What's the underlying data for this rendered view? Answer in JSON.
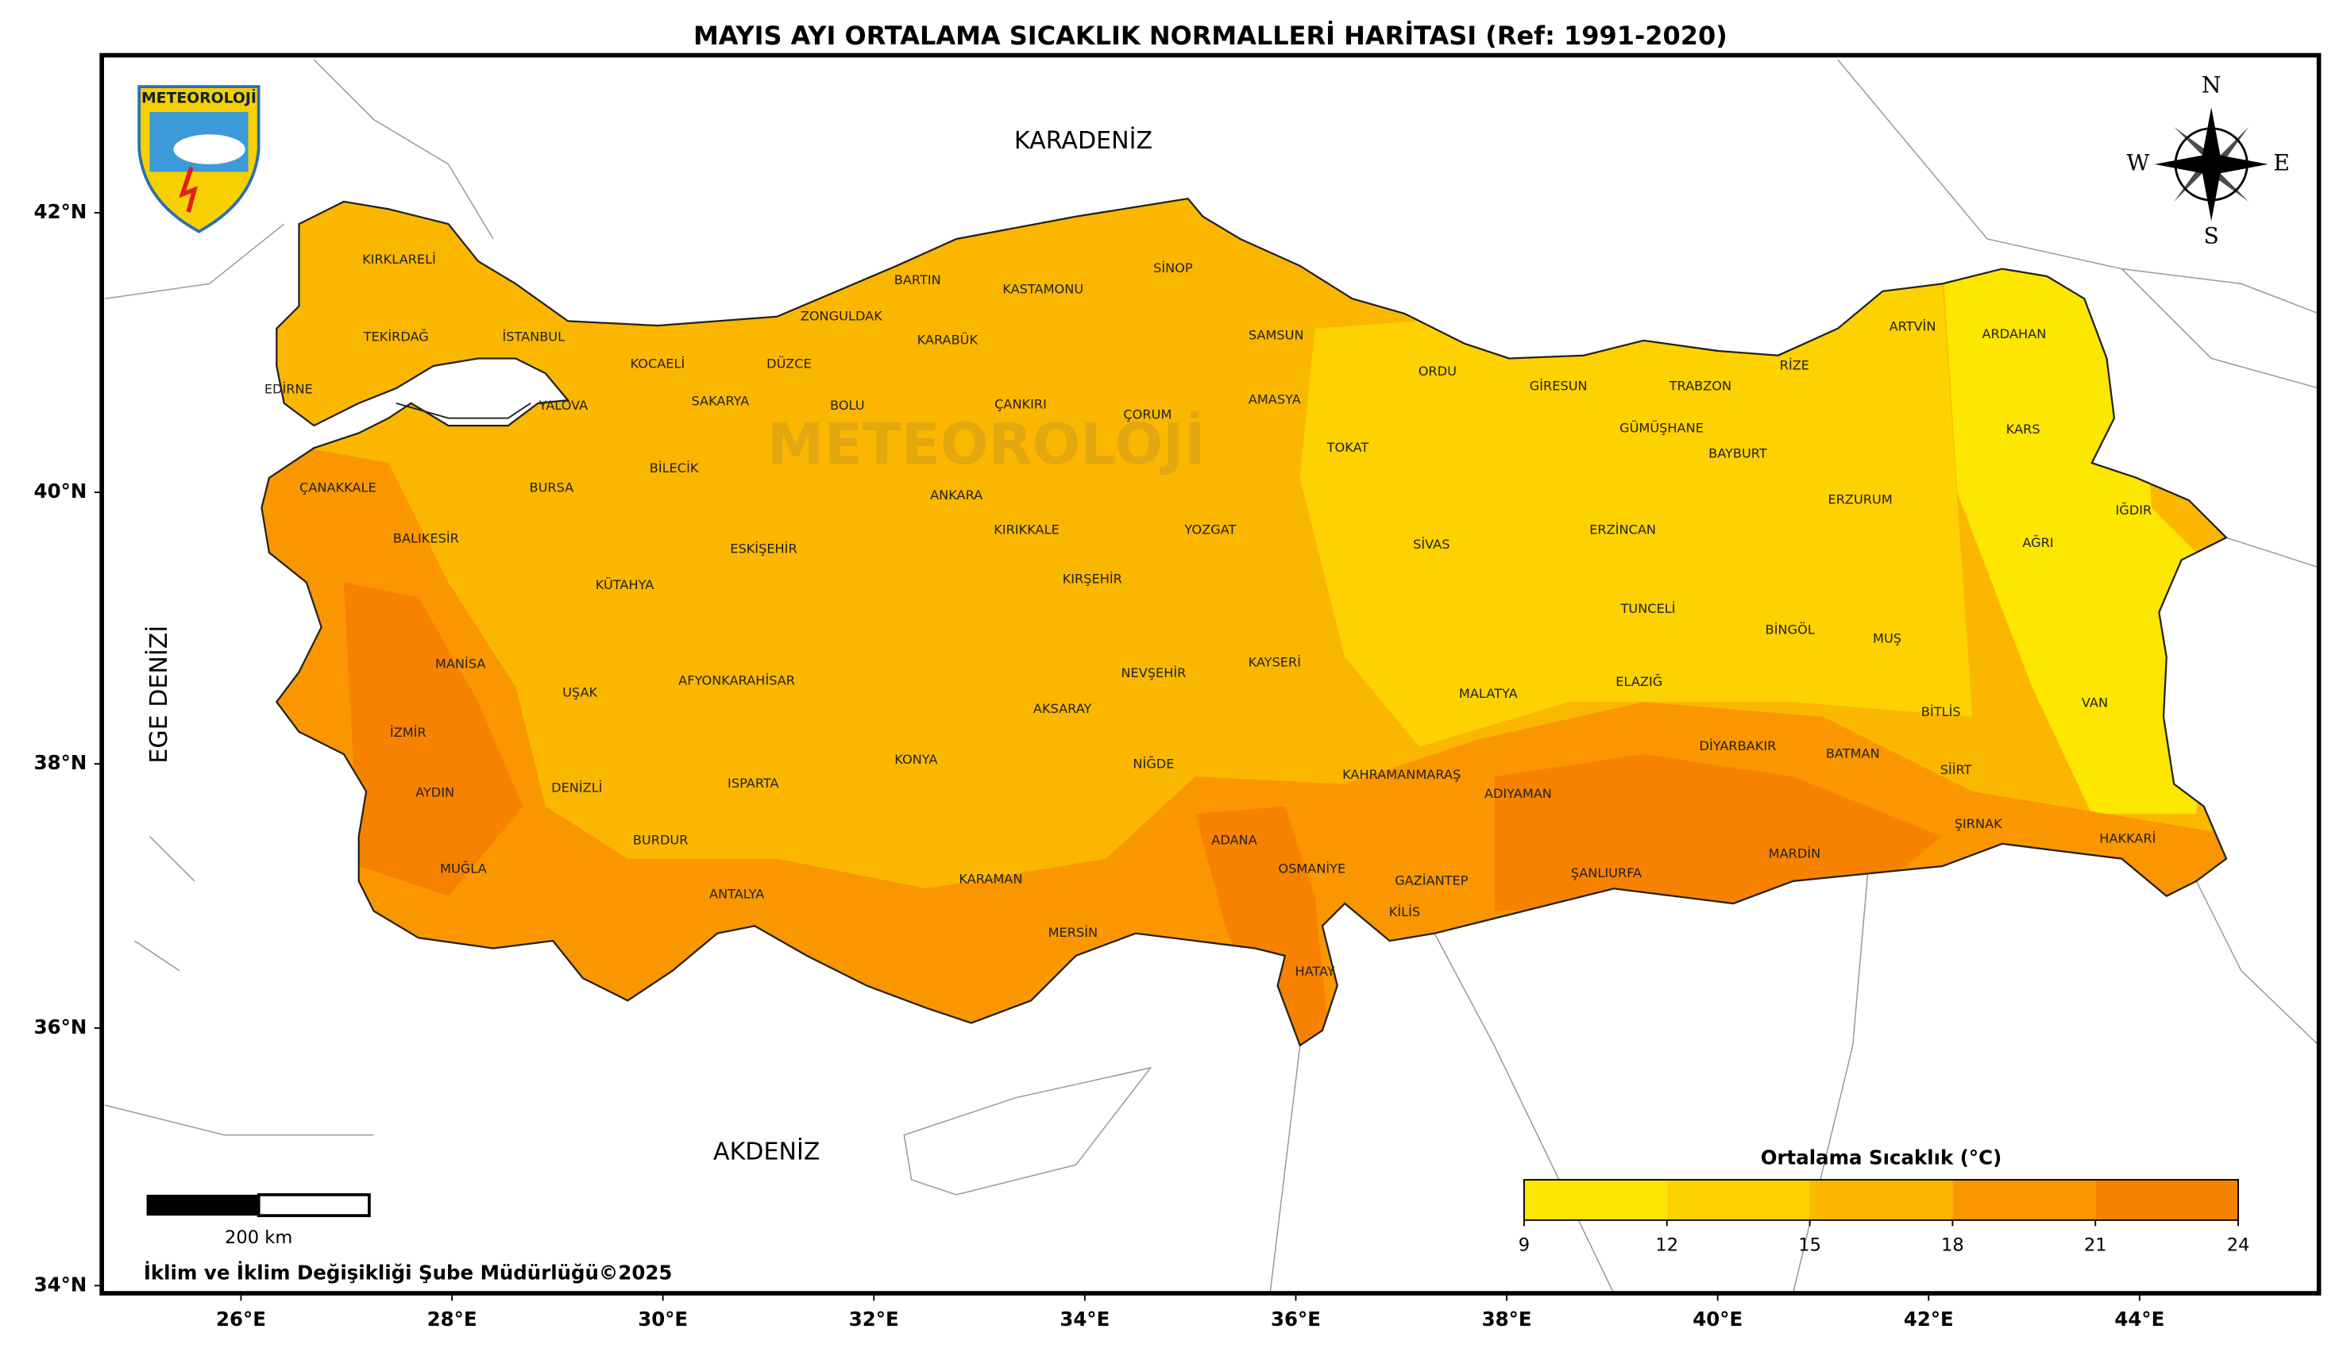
{
  "title": "MAYIS AYI ORTALAMA SICAKLIK NORMALLERİ HARİTASI (Ref: 1991-2020)",
  "logo": "METEOROLOJİ",
  "map": {
    "lon_range": [
      24.68,
      45.7
    ],
    "lat_range": [
      33.94,
      43.1
    ],
    "lon_ticks": [
      {
        "value": 26,
        "label": "26°E"
      },
      {
        "value": 28,
        "label": "28°E"
      },
      {
        "value": 30,
        "label": "30°E"
      },
      {
        "value": 32,
        "label": "32°E"
      },
      {
        "value": 34,
        "label": "34°E"
      },
      {
        "value": 36,
        "label": "36°E"
      },
      {
        "value": 38,
        "label": "38°E"
      },
      {
        "value": 40,
        "label": "40°E"
      },
      {
        "value": 42,
        "label": "42°E"
      },
      {
        "value": 44,
        "label": "44°E"
      }
    ],
    "lat_ticks": [
      {
        "value": 34,
        "label": "34°N"
      },
      {
        "value": 36,
        "label": "36°N"
      },
      {
        "value": 38,
        "label": "38°N"
      },
      {
        "value": 40,
        "label": "40°N"
      },
      {
        "value": 42,
        "label": "42°N"
      }
    ]
  },
  "seas": [
    "KARADENİZ",
    "EGE DENİZİ",
    "AKDENİZ"
  ],
  "provinces": [
    "KIRKLARELİ",
    "TEKİRDAĞ",
    "EDİRNE",
    "İSTANBUL",
    "YALOVA",
    "KOCAELİ",
    "SAKARYA",
    "DÜZCE",
    "ZONGULDAK",
    "BARTIN",
    "KARABÜK",
    "KASTAMONU",
    "SİNOP",
    "SAMSUN",
    "BOLU",
    "ÇANKIRI",
    "ÇORUM",
    "AMASYA",
    "TOKAT",
    "ORDU",
    "GİRESUN",
    "TRABZON",
    "RİZE",
    "ARTVİN",
    "ARDAHAN",
    "KARS",
    "GÜMÜŞHANE",
    "BAYBURT",
    "ERZURUM",
    "IĞDIR",
    "AĞRI",
    "ERZİNCAN",
    "SİVAS",
    "YOZGAT",
    "KIRIKKALE",
    "ANKARA",
    "KIRŞEHİR",
    "BİLECİK",
    "BURSA",
    "ÇANAKKALE",
    "BALIKESİR",
    "KÜTAHYA",
    "ESKİŞEHİR",
    "TUNCELİ",
    "BİNGÖL",
    "MUŞ",
    "ELAZIĞ",
    "MALATYA",
    "KAYSERİ",
    "NEVŞEHİR",
    "AKSARAY",
    "MANİSA",
    "UŞAK",
    "AFYONKARAHİSAR",
    "İZMİR",
    "KONYA",
    "NİĞDE",
    "KAHRAMANMARAŞ",
    "ADIYAMAN",
    "DİYARBAKIR",
    "BATMAN",
    "SİİRT",
    "BİTLİS",
    "VAN",
    "AYDIN",
    "DENİZLİ",
    "ISPARTA",
    "ŞIRNAK",
    "HAKKARİ",
    "MUĞLA",
    "BURDUR",
    "ADANA",
    "OSMANİYE",
    "GAZİANTEP",
    "ŞANLIURFA",
    "MARDİN",
    "KARAMAN",
    "ANTALYA",
    "KİLİS",
    "MERSİN",
    "HATAY"
  ],
  "legend": {
    "title": "Ortalama Sıcaklık (°C)",
    "ticks": [
      9,
      12,
      15,
      18,
      21,
      24
    ],
    "colors": [
      "#fde600",
      "#fdd200",
      "#fbb700",
      "#f99600",
      "#f78200"
    ]
  },
  "scale_bar": {
    "label": "200 km"
  },
  "credit": "İklim ve İklim Değişikliği Şube Müdürlüğü©2025",
  "compass": {
    "n": "N",
    "w": "W",
    "e": "E",
    "s": "S"
  }
}
